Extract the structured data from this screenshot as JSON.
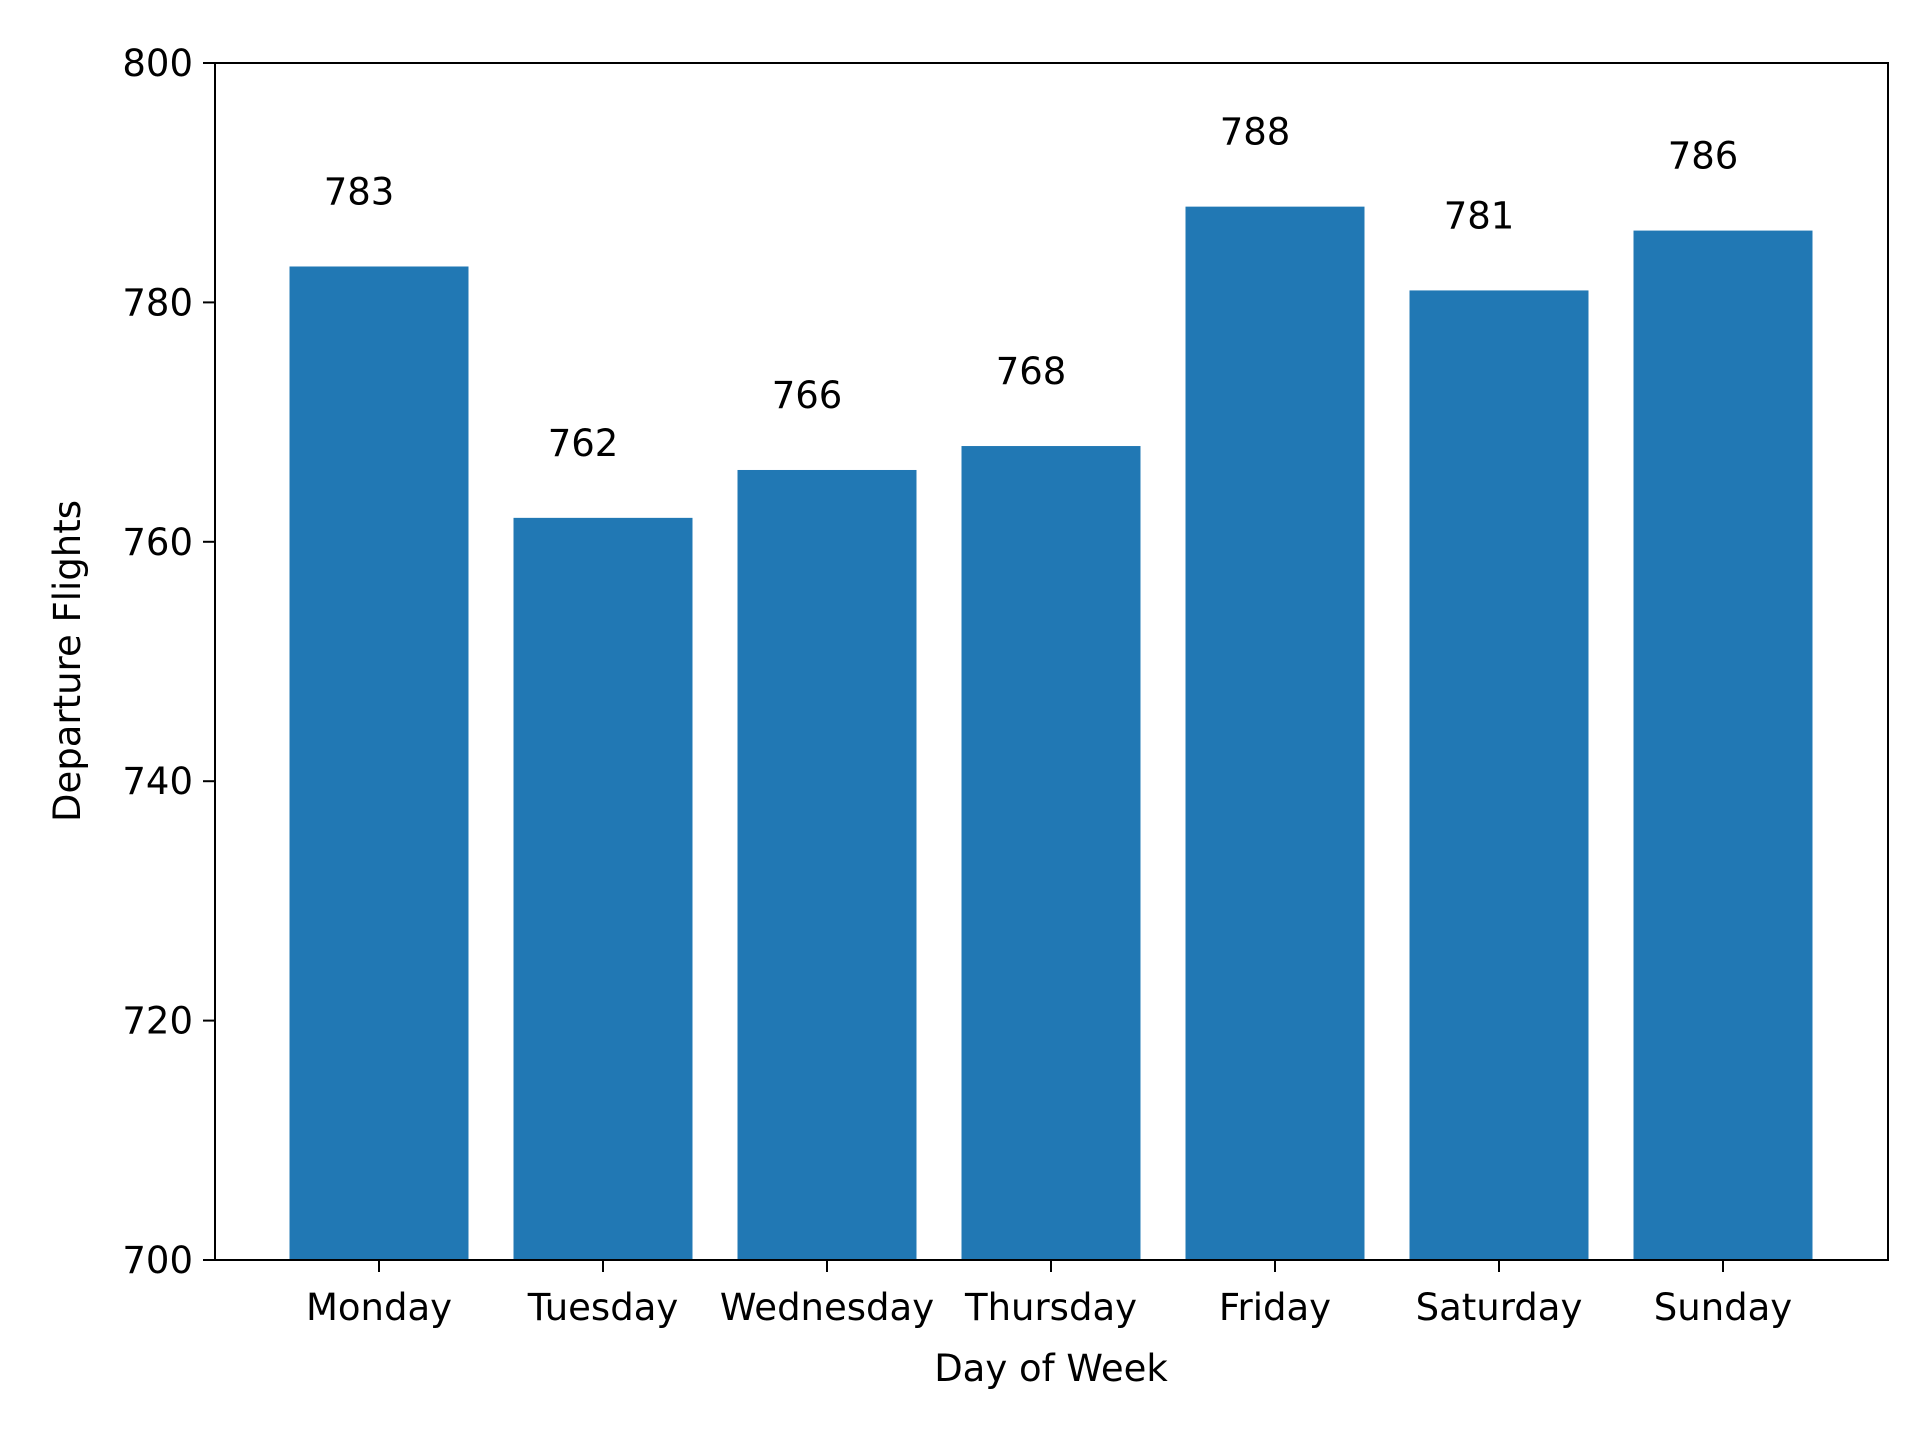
{
  "chart_data": {
    "type": "bar",
    "title": "",
    "xlabel": "Day of Week",
    "ylabel": "Departure Flights",
    "categories": [
      "Monday",
      "Tuesday",
      "Wednesday",
      "Thursday",
      "Friday",
      "Saturday",
      "Sunday"
    ],
    "values": [
      783,
      762,
      766,
      768,
      788,
      781,
      786
    ],
    "data_labels": [
      "783",
      "762",
      "766",
      "768",
      "788",
      "781",
      "786"
    ],
    "ylim": [
      700,
      800
    ],
    "yticks": [
      700,
      720,
      740,
      760,
      780,
      800
    ],
    "ytick_labels": [
      "700",
      "720",
      "740",
      "760",
      "780",
      "800"
    ],
    "grid": false,
    "legend": "none",
    "bar_color": "#2178b4"
  }
}
